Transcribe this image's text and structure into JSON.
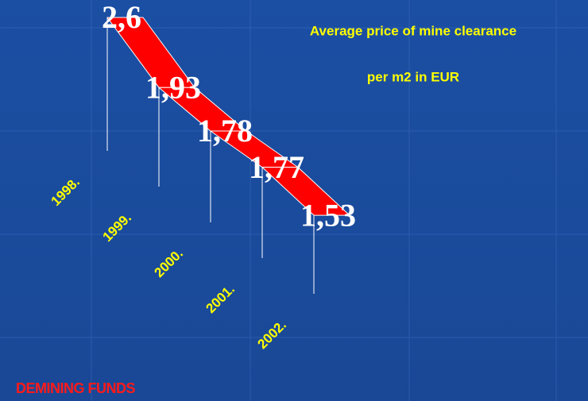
{
  "chart_data": {
    "type": "ribbon",
    "title": "Average price of mine clearance",
    "subtitle": "per m2 in EUR",
    "categories": [
      "1998.",
      "1999.",
      "2000.",
      "2001.",
      "2002."
    ],
    "values": [
      2.6,
      1.93,
      1.78,
      1.77,
      1.53
    ],
    "value_labels": [
      "2,6",
      "1,93",
      "1,78",
      "1,77",
      "1,53"
    ],
    "color": "#ff0000",
    "annotation": "DEMINING FUNDS"
  }
}
